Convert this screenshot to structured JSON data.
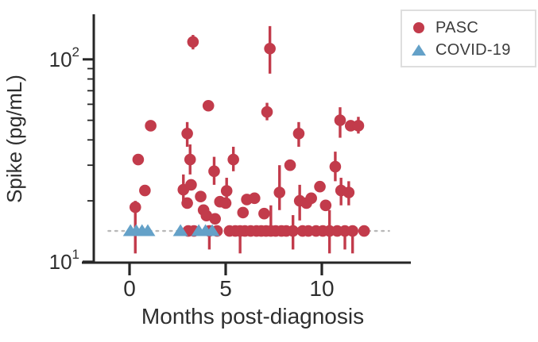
{
  "legend": {
    "items": [
      {
        "label": "PASC",
        "marker": "circle",
        "color": "#c23b4b"
      },
      {
        "label": "COVID-19",
        "marker": "triangle",
        "color": "#64a1c8"
      }
    ]
  },
  "chart_data": {
    "type": "scatter",
    "title": "",
    "xlabel": "Months post-diagnosis",
    "ylabel": "Spike  (pg/mL)",
    "x_ticks": [
      0,
      5,
      10
    ],
    "x_range": [
      -1.86,
      14.63
    ],
    "y_scale": "log",
    "y_major_ticks": [
      10,
      100
    ],
    "y_minor_ticks": [
      20,
      30,
      40,
      50,
      60,
      70,
      80,
      90
    ],
    "y_range": [
      9.9,
      167
    ],
    "grid": "off",
    "legend_position": "upper right",
    "axis_color": "#262626",
    "detection_line": {
      "value": 14.2,
      "x_start": -1.1,
      "x_end": 13.5,
      "style": "dotted",
      "color": "#b9b9b9"
    },
    "series": [
      {
        "name": "PASC",
        "marker": "circle",
        "color": "#c23b4b",
        "points_format": "[months, pg_per_mL, err_low?, err_high?]",
        "points": [
          [
            0.3,
            18.6,
            11,
            20
          ],
          [
            0.45,
            32
          ],
          [
            0.8,
            22.5
          ],
          [
            1.1,
            47
          ],
          [
            2.8,
            22.7,
            19,
            27
          ],
          [
            3.0,
            43,
            37,
            49
          ],
          [
            3.0,
            19.5
          ],
          [
            3.05,
            14.2
          ],
          [
            3.15,
            32,
            27,
            38
          ],
          [
            3.2,
            24
          ],
          [
            3.3,
            122,
            112,
            132
          ],
          [
            3.35,
            14.2
          ],
          [
            3.7,
            21
          ],
          [
            3.85,
            18
          ],
          [
            4.0,
            16.9
          ],
          [
            4.1,
            59
          ],
          [
            4.15,
            14.2,
            11.5,
            14.6
          ],
          [
            4.4,
            28,
            24,
            33
          ],
          [
            4.45,
            16.3
          ],
          [
            4.55,
            14.2
          ],
          [
            4.7,
            19.8
          ],
          [
            5.0,
            19.5
          ],
          [
            5.05,
            22.4,
            19,
            26
          ],
          [
            5.2,
            14.2
          ],
          [
            5.4,
            32,
            28,
            37
          ],
          [
            5.5,
            14.2
          ],
          [
            5.75,
            14.2,
            11,
            14.6
          ],
          [
            5.9,
            17.5
          ],
          [
            6.0,
            14.2
          ],
          [
            6.1,
            20.3
          ],
          [
            6.3,
            14.2
          ],
          [
            6.5,
            20.6
          ],
          [
            6.6,
            14.2
          ],
          [
            6.85,
            14.2
          ],
          [
            7.0,
            17.3
          ],
          [
            7.1,
            14.2
          ],
          [
            7.15,
            55,
            50,
            61
          ],
          [
            7.3,
            113,
            85,
            146
          ],
          [
            7.35,
            14.2,
            14.2,
            19
          ],
          [
            7.6,
            14.2
          ],
          [
            7.8,
            22,
            18,
            30
          ],
          [
            7.9,
            14.2
          ],
          [
            8.15,
            14.2
          ],
          [
            8.35,
            30
          ],
          [
            8.5,
            14.2,
            11.5,
            17
          ],
          [
            8.8,
            43,
            37,
            49
          ],
          [
            8.85,
            20,
            16,
            24
          ],
          [
            9.0,
            14.2
          ],
          [
            9.2,
            19.5
          ],
          [
            9.3,
            14.2
          ],
          [
            9.45,
            20.6
          ],
          [
            9.7,
            14.2
          ],
          [
            9.9,
            23.5
          ],
          [
            10.05,
            14.2
          ],
          [
            10.2,
            19
          ],
          [
            10.4,
            14.2,
            11,
            18
          ],
          [
            10.7,
            29.5,
            25,
            35
          ],
          [
            10.8,
            14.2
          ],
          [
            10.95,
            50,
            41,
            58
          ],
          [
            11.0,
            22.5,
            19,
            26
          ],
          [
            11.2,
            14.2,
            11.5,
            14.6
          ],
          [
            11.4,
            22,
            19,
            25
          ],
          [
            11.5,
            47
          ],
          [
            11.6,
            14.2,
            11,
            14.6
          ],
          [
            11.9,
            47,
            43,
            52
          ],
          [
            12.2,
            14.2
          ]
        ]
      },
      {
        "name": "COVID-19",
        "marker": "triangle",
        "color": "#64a1c8",
        "points_format": "[months, pg_per_mL]",
        "points": [
          [
            0.05,
            14.2
          ],
          [
            0.35,
            14.2
          ],
          [
            0.65,
            14.2
          ],
          [
            0.95,
            14.2
          ],
          [
            2.65,
            14.2
          ],
          [
            3.6,
            14.2
          ],
          [
            3.95,
            14.2
          ],
          [
            4.3,
            14.2
          ]
        ]
      }
    ]
  }
}
